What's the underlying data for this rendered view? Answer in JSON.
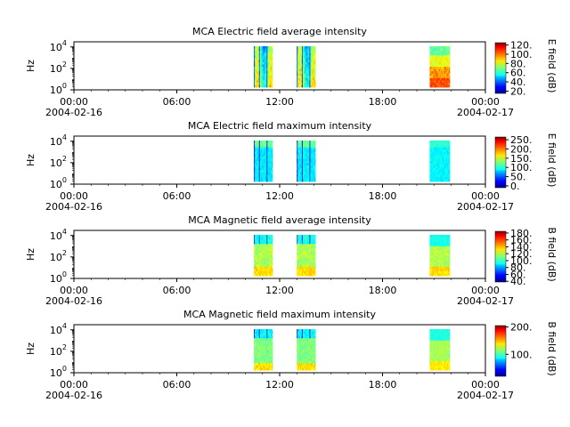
{
  "chart_data": [
    {
      "type": "heatmap",
      "title": "MCA  Electric field average intensity",
      "ylabel": "Hz",
      "yscale": "log",
      "ylim": [
        1,
        30000
      ],
      "yticks": [
        {
          "exp": "0"
        },
        {
          "exp": "2"
        },
        {
          "exp": "4"
        }
      ],
      "xlim": [
        "2004-02-16 00:00",
        "2004-02-17 00:00"
      ],
      "xticks": [
        {
          "time": "00:00",
          "date": "2004-02-16"
        },
        {
          "time": "06:00",
          "date": ""
        },
        {
          "time": "12:00",
          "date": ""
        },
        {
          "time": "18:00",
          "date": ""
        },
        {
          "time": "00:00",
          "date": "2004-02-17"
        }
      ],
      "colorbar": {
        "label": "E field (dB)",
        "min": 15,
        "max": 125,
        "ticks": [
          "20.",
          "40.",
          "60.",
          "80.",
          "100.",
          "120."
        ],
        "tick_values": [
          20,
          40,
          60,
          80,
          100,
          120
        ]
      },
      "segments": [
        {
          "start": "2004-02-16 10:30",
          "end": "2004-02-16 11:35",
          "style": "e_avg"
        },
        {
          "start": "2004-02-16 13:00",
          "end": "2004-02-16 14:05",
          "style": "e_avg"
        },
        {
          "start": "2004-02-16 20:45",
          "end": "2004-02-16 21:55",
          "style": "e_avg_late"
        }
      ]
    },
    {
      "type": "heatmap",
      "title": "MCA  Electric field maximum intensity",
      "ylabel": "Hz",
      "yscale": "log",
      "ylim": [
        1,
        30000
      ],
      "yticks": [
        {
          "exp": "0"
        },
        {
          "exp": "2"
        },
        {
          "exp": "4"
        }
      ],
      "xlim": [
        "2004-02-16 00:00",
        "2004-02-17 00:00"
      ],
      "xticks": [
        {
          "time": "00:00",
          "date": "2004-02-16"
        },
        {
          "time": "06:00",
          "date": ""
        },
        {
          "time": "12:00",
          "date": ""
        },
        {
          "time": "18:00",
          "date": ""
        },
        {
          "time": "00:00",
          "date": "2004-02-17"
        }
      ],
      "colorbar": {
        "label": "E field (dB)",
        "min": -10,
        "max": 265,
        "ticks": [
          "0.",
          "50.",
          "100.",
          "150.",
          "200.",
          "250."
        ],
        "tick_values": [
          0,
          50,
          100,
          150,
          200,
          250
        ]
      },
      "segments": [
        {
          "start": "2004-02-16 10:30",
          "end": "2004-02-16 11:35",
          "style": "e_max"
        },
        {
          "start": "2004-02-16 13:00",
          "end": "2004-02-16 14:05",
          "style": "e_max"
        },
        {
          "start": "2004-02-16 20:45",
          "end": "2004-02-16 21:55",
          "style": "e_max_late"
        }
      ]
    },
    {
      "type": "heatmap",
      "title": "MCA  Magnetic field average intensity",
      "ylabel": "Hz",
      "yscale": "log",
      "ylim": [
        1,
        30000
      ],
      "yticks": [
        {
          "exp": "0"
        },
        {
          "exp": "2"
        },
        {
          "exp": "4"
        }
      ],
      "xlim": [
        "2004-02-16 00:00",
        "2004-02-17 00:00"
      ],
      "xticks": [
        {
          "time": "00:00",
          "date": "2004-02-16"
        },
        {
          "time": "06:00",
          "date": ""
        },
        {
          "time": "12:00",
          "date": ""
        },
        {
          "time": "18:00",
          "date": ""
        },
        {
          "time": "00:00",
          "date": "2004-02-17"
        }
      ],
      "colorbar": {
        "label": "B field (dB)",
        "min": 38,
        "max": 185,
        "ticks": [
          "40.",
          "60.",
          "80.",
          "100.",
          "120.",
          "140.",
          "160.",
          "180."
        ],
        "tick_values": [
          40,
          60,
          80,
          100,
          120,
          140,
          160,
          180
        ]
      },
      "segments": [
        {
          "start": "2004-02-16 10:30",
          "end": "2004-02-16 11:35",
          "style": "b_avg"
        },
        {
          "start": "2004-02-16 13:00",
          "end": "2004-02-16 14:05",
          "style": "b_avg"
        },
        {
          "start": "2004-02-16 20:45",
          "end": "2004-02-16 21:55",
          "style": "b_avg_late"
        }
      ]
    },
    {
      "type": "heatmap",
      "title": "MCA  Magnetic field maximum intensity",
      "ylabel": "Hz",
      "yscale": "log",
      "ylim": [
        1,
        30000
      ],
      "yticks": [
        {
          "exp": "0"
        },
        {
          "exp": "2"
        },
        {
          "exp": "4"
        }
      ],
      "xlim": [
        "2004-02-16 00:00",
        "2004-02-17 00:00"
      ],
      "xticks": [
        {
          "time": "00:00",
          "date": "2004-02-16"
        },
        {
          "time": "06:00",
          "date": ""
        },
        {
          "time": "12:00",
          "date": ""
        },
        {
          "time": "18:00",
          "date": ""
        },
        {
          "time": "00:00",
          "date": "2004-02-17"
        }
      ],
      "colorbar": {
        "label": "B field (dB)",
        "min": 20,
        "max": 205,
        "ticks": [
          "100.",
          "200."
        ],
        "tick_values": [
          100,
          200
        ]
      },
      "segments": [
        {
          "start": "2004-02-16 10:30",
          "end": "2004-02-16 11:35",
          "style": "b_max"
        },
        {
          "start": "2004-02-16 13:00",
          "end": "2004-02-16 14:05",
          "style": "b_max"
        },
        {
          "start": "2004-02-16 20:45",
          "end": "2004-02-16 21:55",
          "style": "b_max_late"
        }
      ]
    }
  ]
}
